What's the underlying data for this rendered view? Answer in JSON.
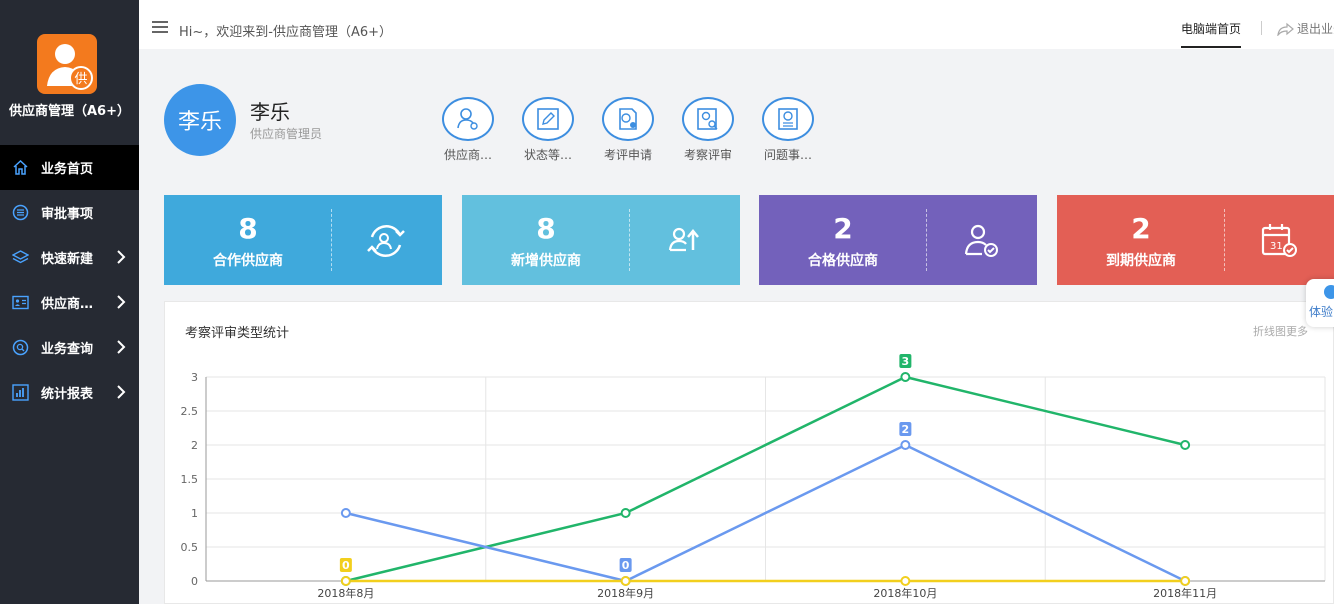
{
  "sidebar": {
    "app_name": "供应商管理（A6+）",
    "logo_char": "供",
    "items": [
      {
        "label": "业务首页",
        "icon": "home-icon",
        "active": true
      },
      {
        "label": "审批事项",
        "icon": "list-circle-icon"
      },
      {
        "label": "快速新建",
        "icon": "layers-icon",
        "has_children": true
      },
      {
        "label": "供应商…",
        "icon": "id-card-icon",
        "has_children": true
      },
      {
        "label": "业务查询",
        "icon": "search-circle-icon",
        "has_children": true
      },
      {
        "label": "统计报表",
        "icon": "bar-chart-icon",
        "has_children": true
      }
    ]
  },
  "topbar": {
    "greeting": "Hi~，欢迎来到-供应商管理（A6+）",
    "home_link": "电脑端首页",
    "logout": "退出业务"
  },
  "user": {
    "avatar_text": "李乐",
    "name": "李乐",
    "role": "供应商管理员"
  },
  "quick_actions": [
    {
      "label": "供应商…",
      "icon": "user-plus-icon"
    },
    {
      "label": "状态等…",
      "icon": "edit-icon"
    },
    {
      "label": "考评申请",
      "icon": "document-info-icon"
    },
    {
      "label": "考察评审",
      "icon": "user-search-icon"
    },
    {
      "label": "问题事…",
      "icon": "question-doc-icon"
    }
  ],
  "stats": [
    {
      "value": "8",
      "label": "合作供应商",
      "color": "#3fa9dc",
      "icon": "cooperation-icon"
    },
    {
      "value": "8",
      "label": "新增供应商",
      "color": "#62c0de",
      "icon": "user-up-icon"
    },
    {
      "value": "2",
      "label": "合格供应商",
      "color": "#7361bb",
      "icon": "user-check-icon"
    },
    {
      "value": "2",
      "label": "到期供应商",
      "color": "#e35f55",
      "icon": "calendar-check-icon"
    }
  ],
  "panel": {
    "title": "考察评审类型统计",
    "more_link": "折线图更多"
  },
  "floating": {
    "label": "体验"
  },
  "chart_data": {
    "type": "line",
    "categories": [
      "2018年8月",
      "2018年9月",
      "2018年10月",
      "2018年11月"
    ],
    "y_ticks": [
      "0",
      "0.5",
      "1",
      "1.5",
      "2",
      "2.5",
      "3"
    ],
    "ylim": [
      0,
      3
    ],
    "grid": true,
    "series": [
      {
        "color": "#21b56a",
        "values": [
          0,
          1,
          3,
          2
        ],
        "labels": [
          {
            "index": 2,
            "text": "3"
          }
        ]
      },
      {
        "color": "#6a99ef",
        "values": [
          1,
          0,
          2,
          0
        ],
        "labels": [
          {
            "index": 1,
            "text": "0"
          },
          {
            "index": 2,
            "text": "2"
          }
        ]
      },
      {
        "color": "#f2cf1d",
        "values": [
          0,
          0,
          0,
          0
        ],
        "labels": [
          {
            "index": 0,
            "text": "0"
          }
        ]
      }
    ]
  }
}
